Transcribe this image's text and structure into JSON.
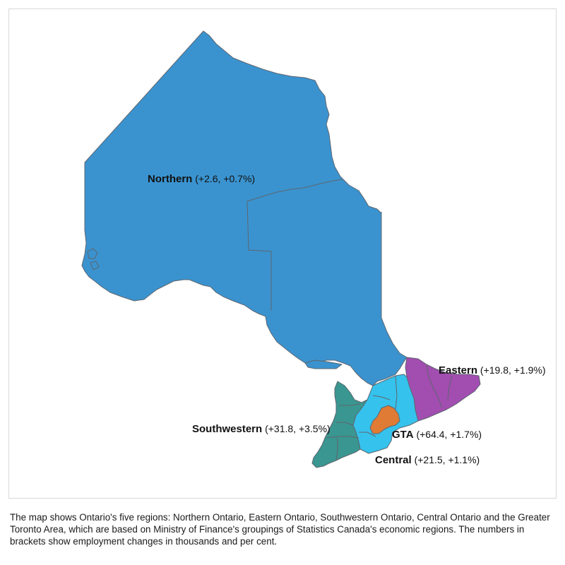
{
  "colors": {
    "northern": "#3a93cf",
    "eastern": "#a24db0",
    "southwestern": "#3a9690",
    "central": "#35c2ec",
    "gta": "#e07b35",
    "border": "#5e6670"
  },
  "regions": {
    "northern": {
      "name": "Northern",
      "values": "(+2.6, +0.7%)"
    },
    "eastern": {
      "name": "Eastern",
      "values": "(+19.8, +1.9%)"
    },
    "southwestern": {
      "name": "Southwestern",
      "values": "(+31.8, +3.5%)"
    },
    "gta": {
      "name": "GTA",
      "values": "(+64.4, +1.7%)"
    },
    "central": {
      "name": "Central",
      "values": "(+21.5, +1.1%)"
    }
  },
  "caption": "The map shows Ontario's five regions: Northern Ontario, Eastern Ontario, Southwestern Ontario, Central Ontario and the Greater Toronto Area, which are based on Ministry of Finance's groupings of Statistics Canada's economic regions. The numbers in brackets show employment changes in thousands and per cent."
}
